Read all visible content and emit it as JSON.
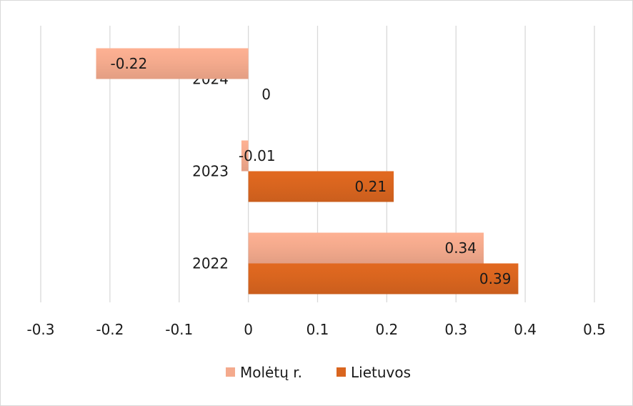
{
  "chart_data": {
    "type": "bar",
    "orientation": "horizontal",
    "categories": [
      "2022",
      "2023",
      "2024"
    ],
    "series": [
      {
        "name": "Molėtų r.",
        "values": [
          0.34,
          -0.01,
          -0.22
        ],
        "labels": [
          "0.34",
          "-0.01",
          "-0.22"
        ],
        "color": "#f4aa8d"
      },
      {
        "name": "Lietuvos",
        "values": [
          0.39,
          0.21,
          0
        ],
        "labels": [
          "0.39",
          "0.21",
          "0"
        ],
        "color": "#d9651f"
      }
    ],
    "xlim": [
      -0.3,
      0.5
    ],
    "xticks": [
      -0.3,
      -0.2,
      -0.1,
      0,
      0.1,
      0.2,
      0.3,
      0.4,
      0.5
    ],
    "xtick_labels": [
      "-0.3",
      "-0.2",
      "-0.1",
      "0",
      "0.1",
      "0.2",
      "0.3",
      "0.4",
      "0.5"
    ],
    "grid": "vertical",
    "legend": "bottom",
    "title": "",
    "xlabel": "",
    "ylabel": ""
  }
}
